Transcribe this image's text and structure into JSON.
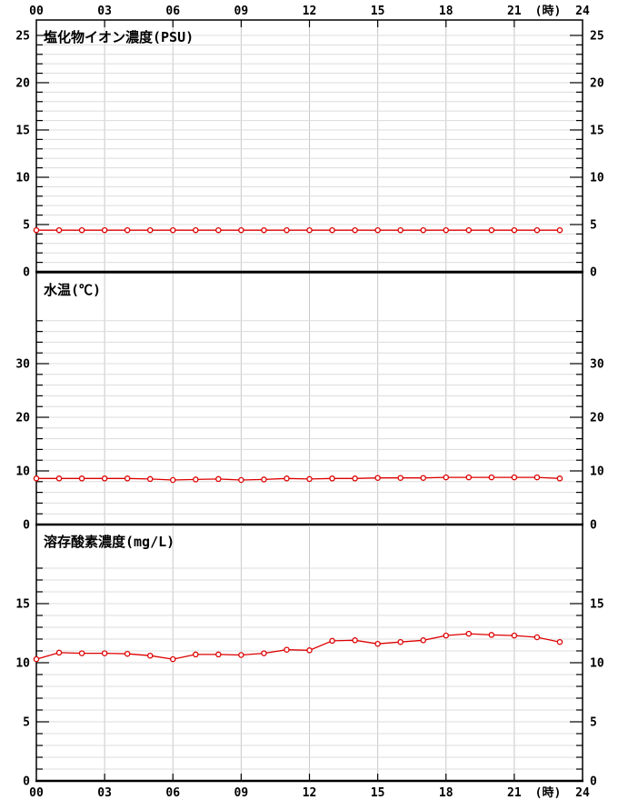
{
  "page": {
    "background": "#ffffff",
    "description": "Three stacked time-series panels of water quality telemetry over 24 hours"
  },
  "style": {
    "line_color": "#dd0000",
    "marker_fill": "#ffffff",
    "axis_color": "#000000",
    "text_color": "#000000",
    "grid_vertical_color": "#c8c8c8",
    "grid_horizontal_color": "#dcdcdc"
  },
  "time_axis": {
    "unit_label": "(時)",
    "tick_hours": [
      0,
      3,
      6,
      9,
      12,
      15,
      18,
      21,
      24
    ],
    "tick_labels": [
      "00",
      "03",
      "06",
      "09",
      "12",
      "15",
      "18",
      "21",
      "24"
    ],
    "range": [
      0,
      24
    ]
  },
  "chart_data": [
    {
      "id": "chloride-ion",
      "type": "line",
      "title": "塩化物イオン濃度(PSU)",
      "x": [
        0,
        1,
        2,
        3,
        4,
        5,
        6,
        7,
        8,
        9,
        10,
        11,
        12,
        13,
        14,
        15,
        16,
        17,
        18,
        19,
        20,
        21,
        22,
        23
      ],
      "values": [
        4.4,
        4.4,
        4.4,
        4.4,
        4.4,
        4.4,
        4.4,
        4.4,
        4.4,
        4.4,
        4.4,
        4.4,
        4.4,
        4.4,
        4.4,
        4.4,
        4.4,
        4.4,
        4.4,
        4.4,
        4.4,
        4.4,
        4.4,
        4.4
      ],
      "ylim": [
        0,
        26.63
      ],
      "ytick_label_values": [
        0,
        5,
        10,
        15,
        20,
        25
      ],
      "ytick_labels": [
        "0",
        "5",
        "10",
        "15",
        "20",
        "25"
      ],
      "minor_step": 1,
      "grid_max": 25,
      "grid": true,
      "legend": "none"
    },
    {
      "id": "water-temperature",
      "type": "line",
      "title": "水温(℃)",
      "x": [
        0,
        1,
        2,
        3,
        4,
        5,
        6,
        7,
        8,
        9,
        10,
        11,
        12,
        13,
        14,
        15,
        16,
        17,
        18,
        19,
        20,
        21,
        22,
        23
      ],
      "values": [
        8.6,
        8.6,
        8.6,
        8.6,
        8.6,
        8.5,
        8.3,
        8.4,
        8.5,
        8.3,
        8.4,
        8.6,
        8.5,
        8.6,
        8.6,
        8.7,
        8.7,
        8.7,
        8.8,
        8.8,
        8.8,
        8.8,
        8.8,
        8.6
      ],
      "ylim": [
        0,
        46.95
      ],
      "ytick_label_values": [
        0,
        10,
        20,
        30
      ],
      "ytick_labels": [
        "0",
        "10",
        "20",
        "30"
      ],
      "minor_step": 2,
      "grid_max": 38,
      "grid": true,
      "legend": "none"
    },
    {
      "id": "dissolved-oxygen",
      "type": "line",
      "title": "溶存酸素濃度(mg/L)",
      "x": [
        0,
        1,
        2,
        3,
        4,
        5,
        6,
        7,
        8,
        9,
        10,
        11,
        12,
        13,
        14,
        15,
        16,
        17,
        18,
        19,
        20,
        21,
        22,
        23
      ],
      "values": [
        10.3,
        10.85,
        10.8,
        10.8,
        10.75,
        10.6,
        10.3,
        10.7,
        10.7,
        10.65,
        10.8,
        11.1,
        11.05,
        11.85,
        11.9,
        11.6,
        11.75,
        11.9,
        12.3,
        12.45,
        12.35,
        12.3,
        12.15,
        11.75
      ],
      "ylim": [
        0,
        21.69
      ],
      "ytick_label_values": [
        0,
        5,
        10,
        15
      ],
      "ytick_labels": [
        "0",
        "5",
        "10",
        "15"
      ],
      "minor_step": 1,
      "grid_max": 18,
      "grid": true,
      "legend": "none"
    }
  ]
}
